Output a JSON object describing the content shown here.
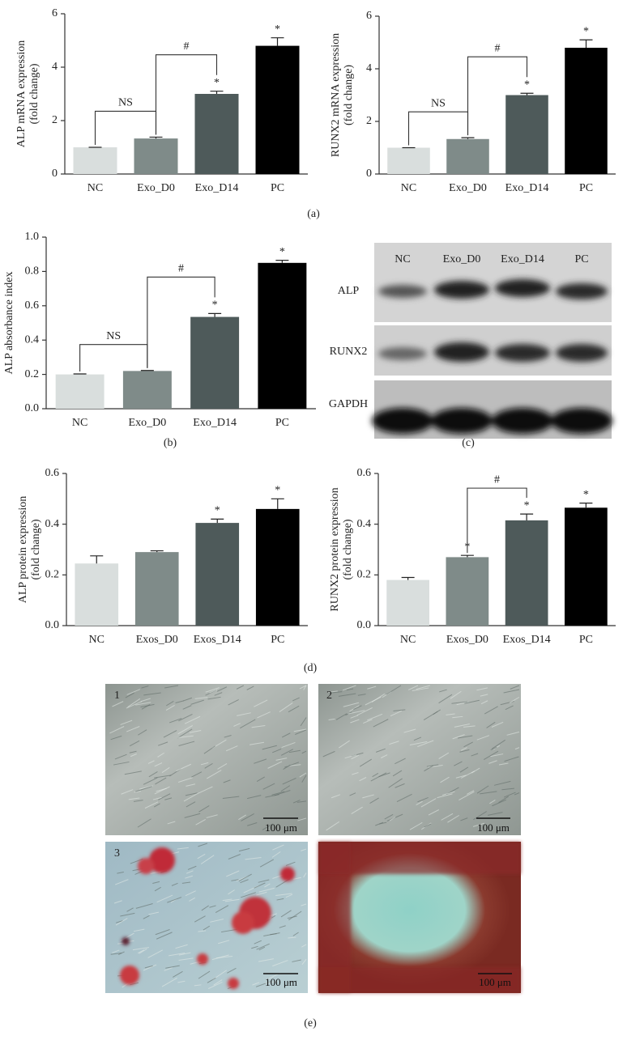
{
  "chart_data": [
    {
      "type": "bar",
      "ylabel": [
        "ALP mRNA expression",
        "(fold change)"
      ],
      "categories": [
        "NC",
        "Exo_D0",
        "Exo_D14",
        "PC"
      ],
      "values": [
        1,
        1.33,
        3,
        4.8
      ],
      "errors": [
        0,
        0.05,
        0.1,
        0.3
      ],
      "colors": [
        "#d9dedd",
        "#7f8b89",
        "#4e5a5a",
        "#000000"
      ],
      "ylim": [
        0,
        6
      ],
      "yticks": [
        0,
        2,
        4,
        6
      ],
      "significance": [
        null,
        null,
        "*",
        "*"
      ],
      "brackets": [
        {
          "text": "NS",
          "from": 0,
          "to": 1
        },
        {
          "text": "#",
          "from": 1,
          "to": 2
        }
      ]
    },
    {
      "type": "bar",
      "ylabel": [
        "RUNX2 mRNA expression",
        "(fold change)"
      ],
      "categories": [
        "NC",
        "Exo_D0",
        "Exo_D14",
        "PC"
      ],
      "values": [
        1,
        1.33,
        3,
        4.8
      ],
      "errors": [
        0,
        0.05,
        0.07,
        0.3
      ],
      "colors": [
        "#d9dedd",
        "#7f8b89",
        "#4e5a5a",
        "#000000"
      ],
      "ylim": [
        0,
        6
      ],
      "yticks": [
        0,
        2,
        4,
        6
      ],
      "significance": [
        null,
        null,
        "*",
        "*"
      ],
      "brackets": [
        {
          "text": "NS",
          "from": 0,
          "to": 1
        },
        {
          "text": "#",
          "from": 1,
          "to": 2
        }
      ]
    },
    {
      "type": "bar",
      "ylabel": [
        "ALP absorbance index"
      ],
      "categories": [
        "NC",
        "Exo_D0",
        "Exo_D14",
        "PC"
      ],
      "values": [
        0.2,
        0.22,
        0.535,
        0.85
      ],
      "errors": [
        0.003,
        0.003,
        0.02,
        0.015
      ],
      "colors": [
        "#d9dedd",
        "#7f8b89",
        "#4e5a5a",
        "#000000"
      ],
      "ylim": [
        0,
        1
      ],
      "yticks": [
        {
          "value": 0,
          "label": "0.0"
        },
        0.2,
        0.4,
        0.6,
        0.8,
        {
          "value": 1,
          "label": "1.0"
        }
      ],
      "significance": [
        null,
        null,
        "*",
        "*"
      ],
      "brackets": [
        {
          "text": "NS",
          "from": 0,
          "to": 1
        },
        {
          "text": "#",
          "from": 1,
          "to": 2
        }
      ]
    },
    {
      "type": "bar",
      "ylabel": [
        "ALP protein expression",
        "(fold change)"
      ],
      "categories": [
        "NC",
        "Exos_D0",
        "Exos_D14",
        "PC"
      ],
      "values": [
        0.245,
        0.29,
        0.405,
        0.46
      ],
      "errors": [
        0.03,
        0.005,
        0.015,
        0.04
      ],
      "colors": [
        "#d9dedd",
        "#7f8b89",
        "#4e5a5a",
        "#000000"
      ],
      "ylim": [
        0,
        0.6
      ],
      "yticks": [
        {
          "value": 0,
          "label": "0.0"
        },
        0.2,
        0.4,
        0.6
      ],
      "significance": [
        null,
        null,
        "*",
        "*"
      ],
      "brackets": []
    },
    {
      "type": "bar",
      "ylabel": [
        "RUNX2 protein expression",
        "(fold change)"
      ],
      "categories": [
        "NC",
        "Exos_D0",
        "Exos_D14",
        "PC"
      ],
      "values": [
        0.18,
        0.27,
        0.415,
        0.465
      ],
      "errors": [
        0.01,
        0.007,
        0.025,
        0.018
      ],
      "colors": [
        "#d9dedd",
        "#7f8b89",
        "#4e5a5a",
        "#000000"
      ],
      "ylim": [
        0,
        0.6
      ],
      "yticks": [
        {
          "value": 0,
          "label": "0.0"
        },
        0.2,
        0.4,
        0.6
      ],
      "significance": [
        null,
        "*",
        "*",
        "*"
      ],
      "brackets": [
        {
          "text": "#",
          "from": 1,
          "to": 2
        }
      ]
    }
  ],
  "panel_labels": [
    "(a)",
    "(b)",
    "(c)",
    "(d)",
    "(e)"
  ],
  "blot": {
    "lanes": [
      "NC",
      "Exo_D0",
      "Exo_D14",
      "PC"
    ],
    "proteins": [
      "ALP",
      "RUNX2",
      "GAPDH"
    ]
  },
  "micrographs": {
    "labels": [
      "1",
      "2",
      "3"
    ],
    "scale_bar": "100 μm"
  }
}
